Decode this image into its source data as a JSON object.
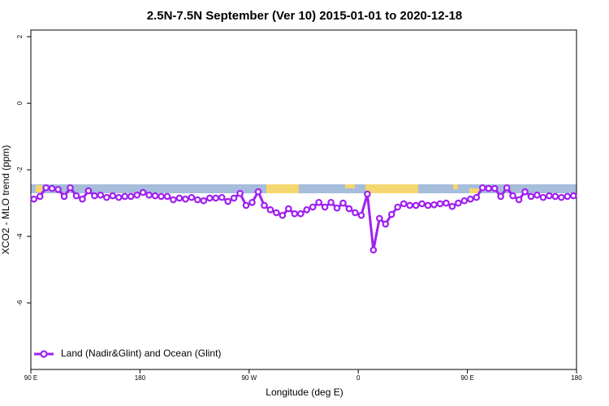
{
  "chart_data": {
    "type": "line",
    "title": "2.5N-7.5N September (Ver 10)   2015-01-01 to 2020-12-18",
    "x_label": "Longitude (deg E)",
    "y_label": "XCO2 - MLO trend (ppm)",
    "x": [
      92.5,
      97.5,
      102.5,
      107.5,
      112.5,
      117.5,
      122.5,
      127.5,
      132.5,
      137.5,
      142.5,
      147.5,
      152.5,
      157.5,
      162.5,
      167.5,
      172.5,
      177.5,
      182.5,
      187.5,
      192.5,
      197.5,
      202.5,
      207.5,
      212.5,
      217.5,
      222.5,
      227.5,
      232.5,
      237.5,
      242.5,
      247.5,
      252.5,
      257.5,
      262.5,
      267.5,
      272.5,
      277.5,
      282.5,
      287.5,
      292.5,
      297.5,
      302.5,
      307.5,
      312.5,
      317.5,
      322.5,
      327.5,
      332.5,
      337.5,
      342.5,
      347.5,
      352.5,
      357.5,
      362.5,
      367.5,
      372.5,
      377.5,
      382.5,
      387.5,
      392.5,
      397.5,
      402.5,
      407.5,
      412.5,
      417.5,
      422.5,
      427.5,
      432.5,
      437.5,
      442.5,
      447.5,
      452.5,
      457.5,
      462.5,
      467.5,
      472.5,
      477.5,
      482.5,
      487.5,
      492.5,
      497.5,
      502.5,
      507.5,
      512.5,
      517.5,
      522.5,
      527.5,
      532.5,
      537.5
    ],
    "series": [
      {
        "name": "Land (Nadir&Glint) and Ocean (Glint)",
        "color": "#a020f0",
        "values": [
          -2.88,
          -2.8,
          -2.54,
          -2.56,
          -2.59,
          -2.8,
          -2.54,
          -2.78,
          -2.88,
          -2.63,
          -2.78,
          -2.76,
          -2.83,
          -2.78,
          -2.83,
          -2.8,
          -2.8,
          -2.76,
          -2.68,
          -2.76,
          -2.78,
          -2.8,
          -2.8,
          -2.9,
          -2.85,
          -2.88,
          -2.83,
          -2.9,
          -2.93,
          -2.85,
          -2.85,
          -2.83,
          -2.95,
          -2.85,
          -2.71,
          -3.07,
          -2.98,
          -2.66,
          -3.07,
          -3.2,
          -3.29,
          -3.37,
          -3.17,
          -3.32,
          -3.32,
          -3.2,
          -3.12,
          -2.98,
          -3.12,
          -2.98,
          -3.15,
          -3.0,
          -3.17,
          -3.29,
          -3.37,
          -2.73,
          -4.41,
          -3.46,
          -3.63,
          -3.34,
          -3.12,
          -3.02,
          -3.07,
          -3.07,
          -3.02,
          -3.07,
          -3.05,
          -3.02,
          -3.0,
          -3.1,
          -3.0,
          -2.93,
          -2.88,
          -2.83,
          -2.54,
          -2.56,
          -2.56,
          -2.8,
          -2.54,
          -2.78,
          -2.9,
          -2.66,
          -2.8,
          -2.76,
          -2.83,
          -2.78,
          -2.8,
          -2.83,
          -2.8,
          -2.78
        ]
      }
    ],
    "xlim": [
      90,
      540
    ],
    "xticks": [
      {
        "value": 90,
        "label": "90 E"
      },
      {
        "value": 180,
        "label": "180"
      },
      {
        "value": 270,
        "label": "90 W"
      },
      {
        "value": 360,
        "label": "0"
      },
      {
        "value": 450,
        "label": "90 E"
      },
      {
        "value": 540,
        "label": "180"
      }
    ],
    "ylim": [
      -8,
      2.2
    ],
    "yticks": [
      2,
      0,
      -2,
      -4,
      -6
    ],
    "legend": "bottom-left"
  }
}
